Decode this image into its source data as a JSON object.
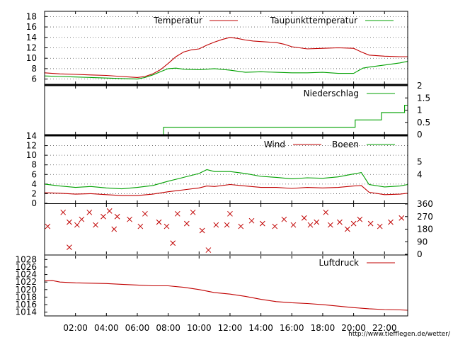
{
  "chart_data": [
    {
      "type": "line",
      "ylim": [
        5,
        19
      ],
      "yticks": [
        6,
        8,
        10,
        12,
        14,
        16,
        18
      ],
      "grid": true,
      "legend_placement": "top",
      "series": [
        {
          "name": "Temperatur",
          "color": "#c00000",
          "x": [
            0,
            1,
            2,
            3,
            4,
            5,
            6,
            6.5,
            7,
            7.5,
            8,
            8.5,
            9,
            9.5,
            10,
            10.5,
            11,
            11.5,
            12,
            12.5,
            13,
            13.5,
            14,
            15,
            15.5,
            16,
            17,
            18,
            19,
            20,
            20.5,
            21,
            22,
            23,
            23.5
          ],
          "values": [
            7.2,
            7.0,
            6.9,
            6.8,
            6.7,
            6.5,
            6.3,
            6.5,
            7.0,
            7.8,
            9.0,
            10.3,
            11.2,
            11.6,
            11.8,
            12.5,
            13.1,
            13.6,
            14.0,
            13.8,
            13.5,
            13.3,
            13.2,
            13.0,
            12.7,
            12.2,
            11.8,
            11.9,
            12.0,
            11.9,
            11.2,
            10.6,
            10.4,
            10.3,
            10.3
          ]
        },
        {
          "name": "Taupunkttemperatur",
          "color": "#00a000",
          "x": [
            0,
            1,
            2,
            3,
            4,
            5,
            6,
            6.5,
            7,
            7.5,
            8,
            8.5,
            9,
            10,
            11,
            12,
            13,
            14,
            15,
            16,
            17,
            18,
            19,
            20,
            20.3,
            20.6,
            21,
            22,
            23,
            23.5
          ],
          "values": [
            6.6,
            6.5,
            6.4,
            6.3,
            6.2,
            6.1,
            6.0,
            6.3,
            6.8,
            7.4,
            8.0,
            8.1,
            7.9,
            7.8,
            8.0,
            7.7,
            7.3,
            7.4,
            7.3,
            7.2,
            7.2,
            7.3,
            7.1,
            7.1,
            7.6,
            8.1,
            8.3,
            8.7,
            9.1,
            9.4
          ]
        }
      ]
    },
    {
      "type": "line",
      "ylim": [
        0,
        2
      ],
      "yticks": [
        0,
        0.5,
        1,
        1.5,
        2
      ],
      "grid": false,
      "legend_placement": "top-right",
      "series": [
        {
          "name": "Niederschlag",
          "color": "#00a000",
          "x": [
            0,
            7.7,
            7.7,
            20.1,
            20.1,
            21.8,
            21.8,
            23.3,
            23.3,
            23.5
          ],
          "values": [
            0,
            0,
            0.3,
            0.3,
            0.6,
            0.6,
            0.9,
            0.9,
            1.2,
            1.2
          ]
        }
      ]
    },
    {
      "type": "line",
      "ylim": [
        0,
        14
      ],
      "yticks": [
        0,
        2,
        4,
        6,
        8,
        10,
        12,
        14
      ],
      "grid": true,
      "legend_placement": "top",
      "series": [
        {
          "name": "Wind",
          "color": "#c00000",
          "x": [
            0,
            1,
            2,
            3,
            4,
            5,
            6,
            7,
            8,
            9,
            10,
            10.5,
            11,
            12,
            13,
            14,
            15,
            16,
            17,
            18,
            19,
            20,
            20.5,
            21,
            22,
            23,
            23.5
          ],
          "values": [
            2.2,
            2.1,
            1.9,
            2.0,
            1.8,
            1.6,
            1.6,
            1.9,
            2.4,
            2.8,
            3.2,
            3.6,
            3.5,
            3.9,
            3.6,
            3.3,
            3.3,
            3.1,
            3.3,
            3.2,
            3.3,
            3.6,
            3.7,
            2.3,
            1.8,
            1.9,
            2.1
          ]
        },
        {
          "name": "Boeen",
          "color": "#00a000",
          "x": [
            0,
            1,
            2,
            3,
            4,
            5,
            6,
            7,
            8,
            9,
            10,
            10.5,
            11,
            12,
            13,
            14,
            15,
            16,
            17,
            18,
            19,
            20,
            20.5,
            21,
            22,
            23,
            23.5
          ],
          "values": [
            4.0,
            3.6,
            3.3,
            3.5,
            3.2,
            3.0,
            3.3,
            3.7,
            4.6,
            5.4,
            6.2,
            7.0,
            6.6,
            6.6,
            6.2,
            5.6,
            5.4,
            5.1,
            5.3,
            5.2,
            5.5,
            6.1,
            6.4,
            3.9,
            3.4,
            3.6,
            3.9
          ]
        }
      ]
    },
    {
      "type": "scatter",
      "ylim": [
        0,
        360
      ],
      "yticks": [
        0,
        90,
        180,
        270,
        360
      ],
      "grid": false,
      "marker": "x",
      "series": [
        {
          "color": "#c00000",
          "x": [
            0.2,
            1.2,
            1.6,
            1.6,
            2.1,
            2.4,
            2.9,
            3.3,
            3.8,
            4.2,
            4.5,
            4.7,
            5.5,
            6.2,
            6.5,
            7.4,
            7.9,
            8.3,
            8.6,
            9.2,
            9.6,
            10.2,
            10.6,
            11.1,
            11.8,
            12.0,
            12.7,
            13.4,
            14.1,
            14.9,
            15.5,
            16.1,
            16.8,
            17.2,
            17.6,
            18.2,
            18.5,
            19.1,
            19.6,
            20.0,
            20.4,
            21.1,
            21.7,
            22.4,
            23.1
          ],
          "values": [
            200,
            300,
            50,
            230,
            210,
            250,
            300,
            210,
            270,
            310,
            180,
            270,
            250,
            200,
            290,
            230,
            200,
            80,
            290,
            220,
            300,
            170,
            30,
            210,
            210,
            290,
            200,
            240,
            220,
            200,
            250,
            210,
            260,
            210,
            230,
            300,
            210,
            230,
            180,
            220,
            250,
            220,
            200,
            230,
            260
          ]
        }
      ]
    },
    {
      "type": "line",
      "ylim": [
        1013,
        1029
      ],
      "yticks": [
        1014,
        1016,
        1018,
        1020,
        1022,
        1024,
        1026,
        1028
      ],
      "grid": false,
      "legend_placement": "top-right",
      "xticks": [
        "02:00",
        "04:00",
        "06:00",
        "08:00",
        "10:00",
        "12:00",
        "14:00",
        "16:00",
        "18:00",
        "20:00",
        "22:00"
      ],
      "series": [
        {
          "name": "Luftdruck",
          "color": "#c00000",
          "x": [
            0,
            0.5,
            1,
            2,
            3,
            4,
            5,
            6,
            7,
            8,
            9,
            10,
            11,
            12,
            13,
            14,
            15,
            16,
            17,
            18,
            19,
            20,
            21,
            22,
            23,
            23.5
          ],
          "values": [
            1022.3,
            1022.4,
            1022.0,
            1021.8,
            1021.7,
            1021.6,
            1021.4,
            1021.2,
            1021.0,
            1021.0,
            1020.6,
            1020.0,
            1019.2,
            1018.8,
            1018.2,
            1017.4,
            1016.8,
            1016.5,
            1016.3,
            1016.0,
            1015.6,
            1015.2,
            1014.9,
            1014.7,
            1014.6,
            1014.5
          ]
        }
      ]
    }
  ],
  "footer": {
    "url": "http://www.tiefflegen.de/wetter/",
    "url_color": "#c00000"
  }
}
